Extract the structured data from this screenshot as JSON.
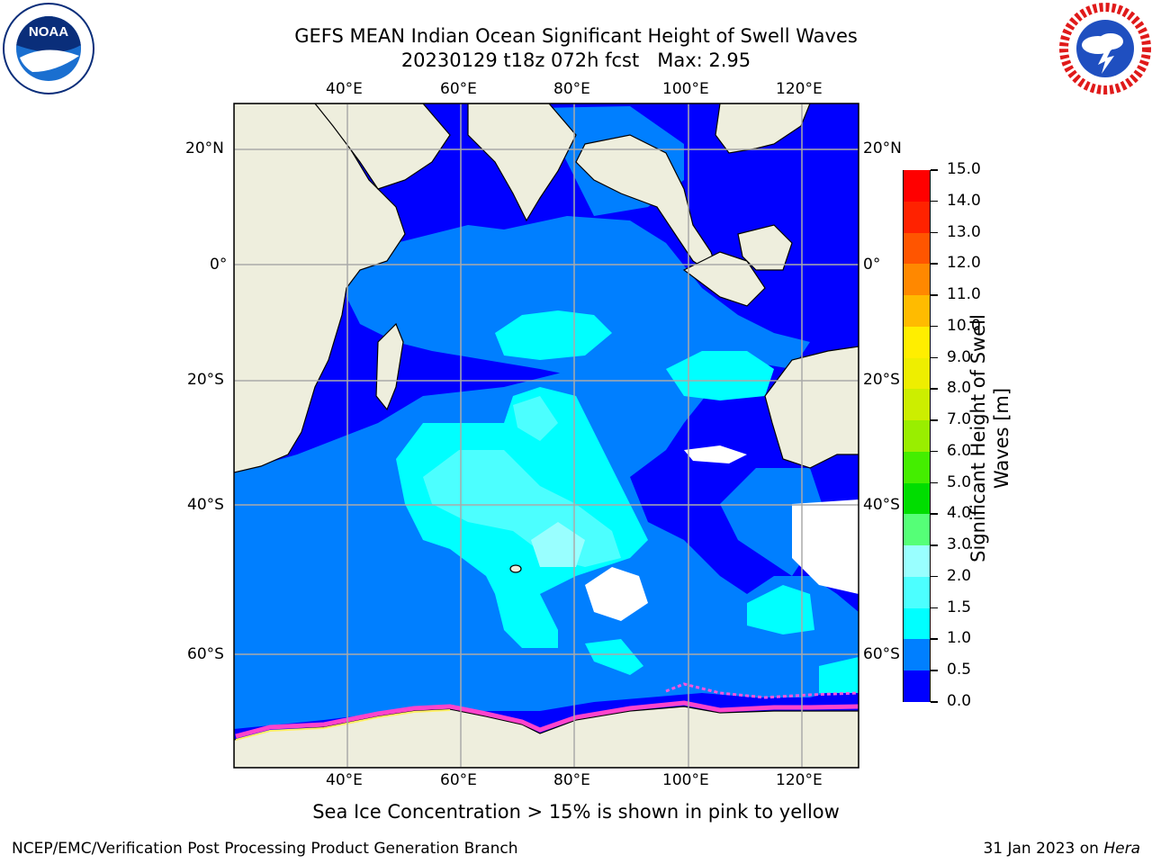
{
  "header": {
    "title_line1": "GEFS MEAN Indian Ocean Significant Height of Swell Waves",
    "title_line2": "20230129 t18z 072h fcst   Max: 2.95"
  },
  "logos": {
    "noaa_text": "NOAA",
    "noaa_ring": "NATIONAL OCEANIC AND ATMOSPHERIC ADMINISTRATION · U.S. DEPARTMENT OF COMMERCE",
    "nws_ring": "NATIONAL WEATHER SERVICE"
  },
  "map": {
    "lon_labels": [
      "40°E",
      "60°E",
      "80°E",
      "100°E",
      "120°E"
    ],
    "lat_labels_left": [
      "20°N",
      "0°",
      "20°S",
      "40°S",
      "60°S"
    ],
    "lat_labels_right": [
      "20°N",
      "0°",
      "20°S",
      "40°S",
      "60°S"
    ],
    "land_color": "#eeeedd",
    "grid_color": "#aaaaaa"
  },
  "colorbar": {
    "label_line1": "Significant Height of Swell",
    "label_line2": "Waves [m]",
    "ticks": [
      "0.0",
      "0.5",
      "1.0",
      "1.5",
      "2.0",
      "3.0",
      "4.0",
      "5.0",
      "6.0",
      "7.0",
      "8.0",
      "9.0",
      "10.0",
      "11.0",
      "12.0",
      "13.0",
      "14.0",
      "15.0"
    ],
    "colors": [
      "#0000ff",
      "#007fff",
      "#00ffff",
      "#4cffff",
      "#99ffff",
      "#55ff77",
      "#00dd00",
      "#44ee00",
      "#99ee00",
      "#ccee00",
      "#eeee00",
      "#ffee00",
      "#ffbb00",
      "#ff8800",
      "#ff5500",
      "#ff2200",
      "#ff0000"
    ]
  },
  "footer": {
    "ice_note": "Sea Ice Concentration > 15% is shown in pink to yellow",
    "left": "NCEP/EMC/Verification Post Processing Product Generation Branch",
    "date": "31 Jan 2023 on",
    "machine": "Hera"
  }
}
